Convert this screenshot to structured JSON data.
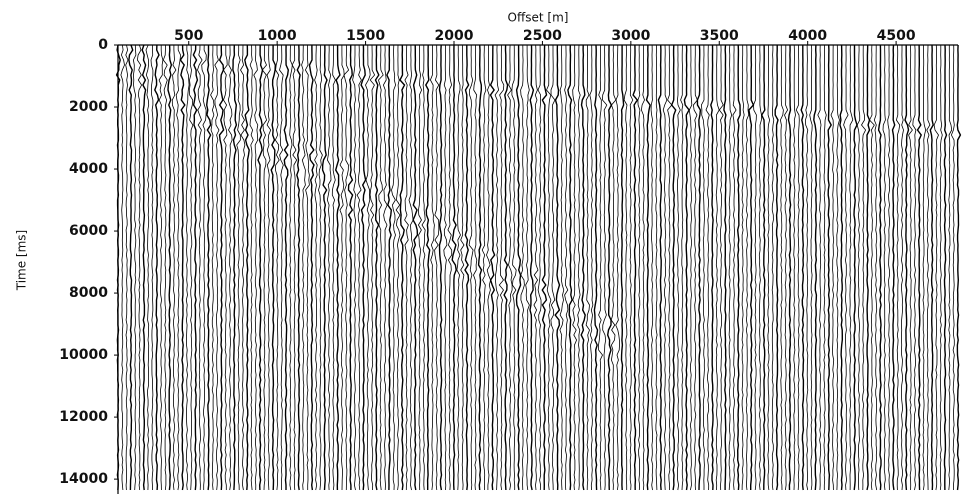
{
  "chart_data": {
    "type": "seismic",
    "x_label": "Offset [m]",
    "y_label": "Time [ms]",
    "xlim": [
      100,
      4850
    ],
    "xticks": [
      500,
      1000,
      1500,
      2000,
      2500,
      3000,
      3500,
      4000,
      4500
    ],
    "ylim": [
      0,
      14480
    ],
    "yticks": [
      0,
      2000,
      4000,
      6000,
      8000,
      10000,
      12000,
      14000
    ],
    "x_axis_position": "top",
    "y_inverted": true,
    "color": "#000000"
  }
}
